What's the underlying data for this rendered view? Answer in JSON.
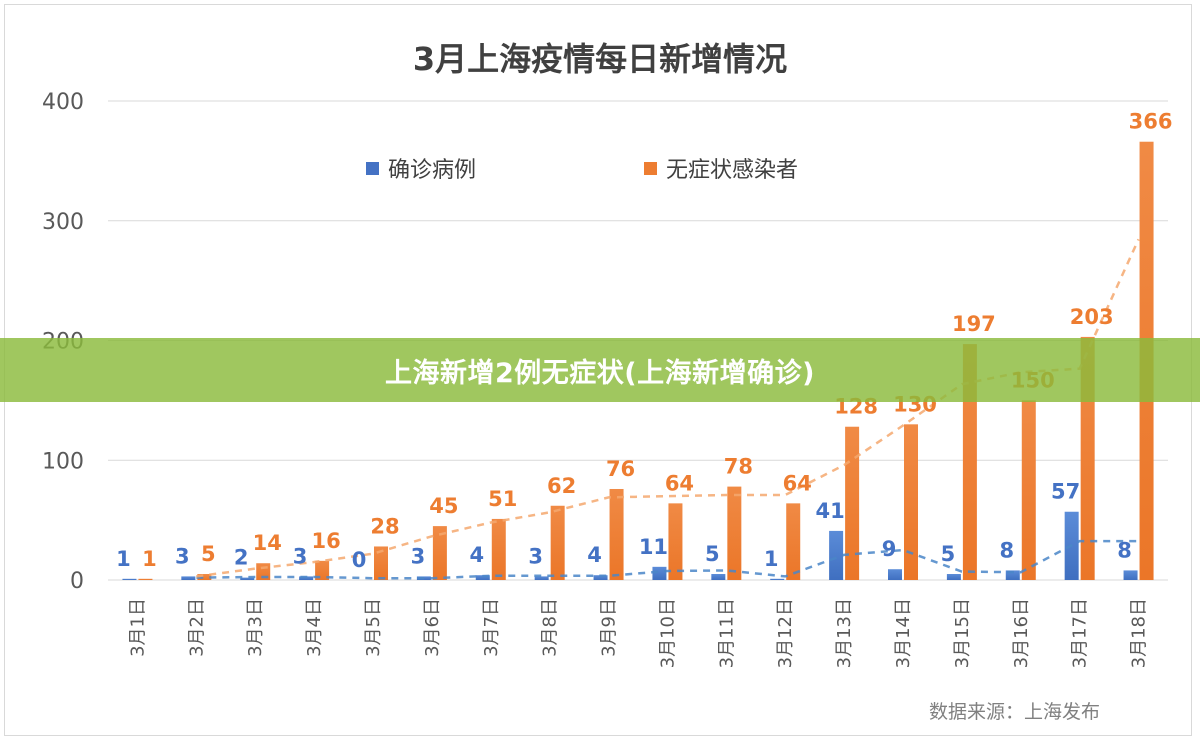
{
  "banner": {
    "text": "上海新增2例无症状(上海新增确诊)"
  },
  "source_note": "数据来源：上海发布",
  "colors": {
    "confirmed": "#4472C4",
    "asymptomatic": "#ED7D31",
    "axis_text": "#595959",
    "title": "#404040",
    "grid": "#d9d9d9",
    "banner": "#8BBB3C"
  },
  "chart_data": {
    "type": "bar",
    "title": "3月上海疫情每日新增情况",
    "categories": [
      "3月1日",
      "3月2日",
      "3月3日",
      "3月4日",
      "3月5日",
      "3月6日",
      "3月7日",
      "3月8日",
      "3月9日",
      "3月10日",
      "3月11日",
      "3月12日",
      "3月13日",
      "3月14日",
      "3月15日",
      "3月16日",
      "3月17日",
      "3月18日"
    ],
    "series": [
      {
        "name": "确诊病例",
        "values": [
          1,
          3,
          2,
          3,
          0,
          3,
          4,
          3,
          4,
          11,
          5,
          1,
          41,
          9,
          5,
          8,
          57,
          8
        ]
      },
      {
        "name": "无症状感染者",
        "values": [
          1,
          5,
          14,
          16,
          28,
          45,
          51,
          62,
          76,
          64,
          78,
          64,
          128,
          130,
          197,
          150,
          203,
          366
        ]
      }
    ],
    "trendlines": "2-period moving average (dashed)",
    "ylim": [
      0,
      400
    ],
    "yticks": [
      0,
      100,
      200,
      300,
      400
    ],
    "grid": true,
    "legend": "top-left",
    "xlabel": "",
    "ylabel": ""
  }
}
